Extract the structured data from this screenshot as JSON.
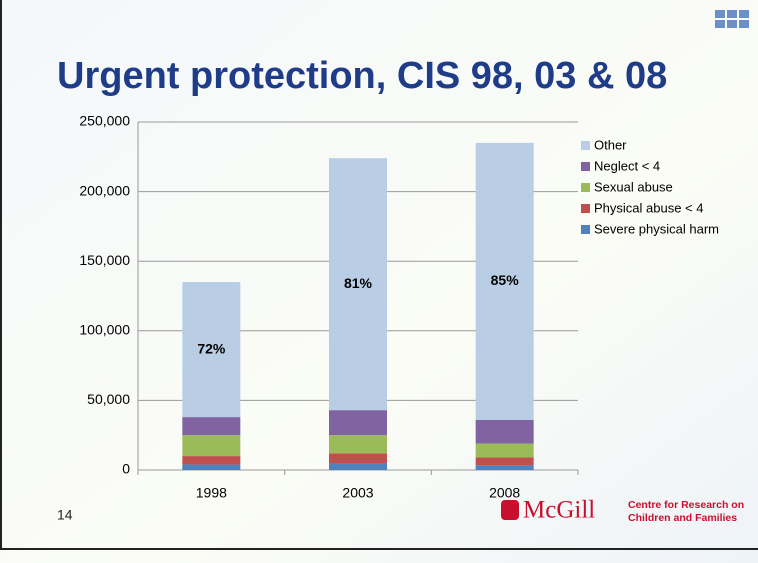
{
  "chart_data": {
    "type": "stacked_bar",
    "title": "Urgent protection, CIS 98, 03 & 08",
    "categories": [
      "1998",
      "2003",
      "2008"
    ],
    "series": [
      {
        "name": "Severe physical harm",
        "color": "#4f81bd",
        "values": [
          4000,
          5000,
          3500
        ]
      },
      {
        "name": "Physical abuse < 4",
        "color": "#c0504d",
        "values": [
          6000,
          7000,
          5500
        ]
      },
      {
        "name": "Sexual abuse",
        "color": "#9bbb59",
        "values": [
          15000,
          13000,
          10000
        ]
      },
      {
        "name": "Neglect < 4",
        "color": "#8064a2",
        "values": [
          13000,
          18000,
          17000
        ]
      },
      {
        "name": "Other",
        "color": "#b9cde5",
        "values": [
          97000,
          181000,
          199000
        ]
      }
    ],
    "annotations": [
      "72%",
      "81%",
      "85%"
    ],
    "ylim": [
      0,
      250000
    ],
    "yticks": [
      0,
      {
        "value": 50000,
        "label": "50,000"
      },
      {
        "value": 100000,
        "label": "100,000"
      },
      {
        "value": 150000,
        "label": "150,000"
      },
      {
        "value": 200000,
        "label": "200,000"
      },
      {
        "value": 250000,
        "label": "250,000"
      }
    ],
    "grid": true,
    "legend": "right"
  },
  "slide_number": "14",
  "logo": {
    "name": "McGill",
    "line1": "Centre for Research on",
    "line2": "Children and Families"
  }
}
